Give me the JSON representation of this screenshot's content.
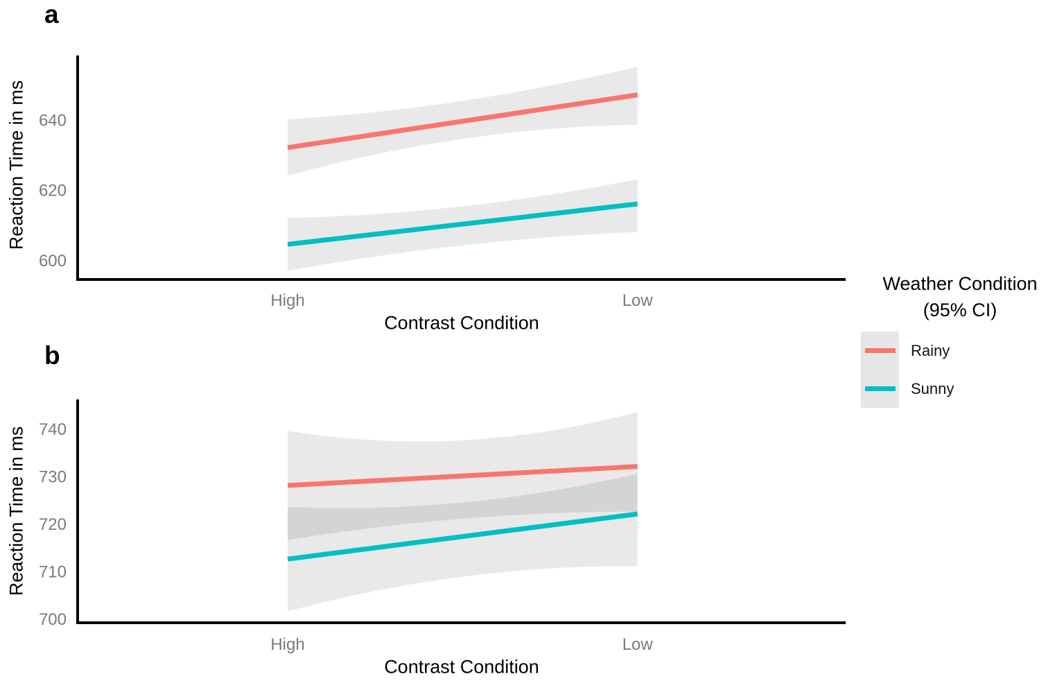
{
  "chart_data": [
    {
      "type": "line",
      "panel_label": "a",
      "xlabel": "Contrast Condition",
      "ylabel": "Reaction Time in ms",
      "categories": [
        "High",
        "Low"
      ],
      "yticks": [
        600,
        620,
        640
      ],
      "ylim": [
        594.5,
        658.2
      ],
      "grid": false,
      "ci_level": "95%",
      "legend_position": "right",
      "series": [
        {
          "name": "Rainy",
          "color": "#F8766D",
          "values": [
            632,
            647
          ],
          "ci_upper": [
            640,
            655
          ],
          "ci_lower": [
            624,
            638.5
          ],
          "ci_upper_mid": 645.3,
          "ci_lower_mid": 634.5
        },
        {
          "name": "Sunny",
          "color": "#00BFC4",
          "values": [
            604.5,
            616
          ],
          "ci_upper": [
            612,
            623
          ],
          "ci_lower": [
            597,
            608
          ],
          "ci_upper_mid": 615.3,
          "ci_lower_mid": 604.2
        }
      ]
    },
    {
      "type": "line",
      "panel_label": "b",
      "xlabel": "Contrast Condition",
      "ylabel": "Reaction Time in ms",
      "categories": [
        "High",
        "Low"
      ],
      "yticks": [
        700,
        710,
        720,
        730,
        740
      ],
      "ylim": [
        699.1,
        746.1
      ],
      "grid": false,
      "ci_level": "95%",
      "legend_position": "right",
      "series": [
        {
          "name": "Rainy",
          "color": "#F8766D",
          "values": [
            728,
            732
          ],
          "ci_upper": [
            739.5,
            743.5
          ],
          "ci_lower": [
            716.5,
            722.5
          ],
          "ci_upper_mid": 737.5,
          "ci_lower_mid": 721
        },
        {
          "name": "Sunny",
          "color": "#00BFC4",
          "values": [
            712.5,
            722
          ],
          "ci_upper": [
            723.5,
            730.5
          ],
          "ci_lower": [
            701.5,
            711
          ],
          "ci_upper_mid": 724.4,
          "ci_lower_mid": 708.8
        }
      ]
    }
  ],
  "legend": {
    "title_line1": "Weather Condition",
    "title_line2": "(95% CI)",
    "entries": [
      {
        "label": "Rainy",
        "color": "#F8766D"
      },
      {
        "label": "Sunny",
        "color": "#00BFC4"
      }
    ]
  },
  "style": {
    "background": "#FFFFFF",
    "axis_color": "#000000",
    "tick_label_color": "#7a7a7a",
    "title_color": "#000000",
    "ribbon_color": "#000000",
    "ribbon_opacity": 0.085,
    "legend_key_fill": "#E6E6E6",
    "line_width": 7,
    "axis_width": 4
  }
}
